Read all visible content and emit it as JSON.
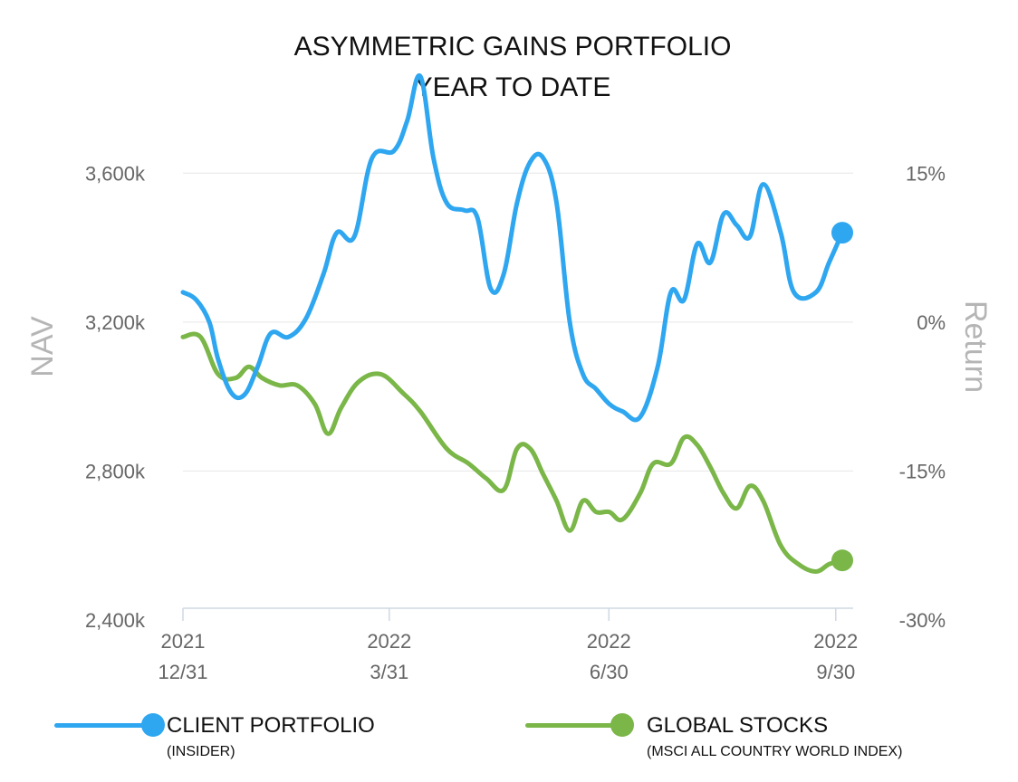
{
  "chart_data": {
    "type": "line",
    "title": [
      "ASYMMETRIC GAINS PORTFOLIO",
      "YEAR TO DATE"
    ],
    "ylabel": "NAV",
    "y2label": "Return",
    "ylim": [
      2400,
      3800
    ],
    "y_ticks": [
      {
        "value": 3600,
        "label": "3,600k"
      },
      {
        "value": 3200,
        "label": "3,200k"
      },
      {
        "value": 2800,
        "label": "2,800k"
      },
      {
        "value": 2400,
        "label": "2,400k"
      }
    ],
    "y2_ticks": [
      {
        "value": 3600,
        "label": "15%"
      },
      {
        "value": 3200,
        "label": "0%"
      },
      {
        "value": 2800,
        "label": "-15%"
      },
      {
        "value": 2400,
        "label": "-30%"
      }
    ],
    "x_ticks": [
      {
        "x": 0,
        "line1": "2021",
        "line2": "12/31"
      },
      {
        "x": 0.31,
        "line1": "2022",
        "line2": "3/31"
      },
      {
        "x": 0.64,
        "line1": "2022",
        "line2": "6/30"
      },
      {
        "x": 0.97,
        "line1": "2022",
        "line2": "9/30"
      }
    ],
    "xlim": [
      0,
      1
    ],
    "grid": true,
    "series": [
      {
        "name": "CLIENT PORTFOLIO",
        "sublabel": "(INSIDER)",
        "color": "#2ea6f0",
        "points": [
          [
            0.0,
            3280
          ],
          [
            0.015,
            3260
          ],
          [
            0.03,
            3200
          ],
          [
            0.04,
            3100
          ],
          [
            0.055,
            3010
          ],
          [
            0.07,
            3005
          ],
          [
            0.085,
            3080
          ],
          [
            0.1,
            3170
          ],
          [
            0.12,
            3160
          ],
          [
            0.14,
            3210
          ],
          [
            0.16,
            3330
          ],
          [
            0.175,
            3440
          ],
          [
            0.195,
            3430
          ],
          [
            0.215,
            3640
          ],
          [
            0.24,
            3660
          ],
          [
            0.255,
            3740
          ],
          [
            0.27,
            3860
          ],
          [
            0.285,
            3640
          ],
          [
            0.3,
            3520
          ],
          [
            0.32,
            3500
          ],
          [
            0.335,
            3480
          ],
          [
            0.35,
            3290
          ],
          [
            0.365,
            3330
          ],
          [
            0.38,
            3520
          ],
          [
            0.395,
            3630
          ],
          [
            0.41,
            3640
          ],
          [
            0.425,
            3520
          ],
          [
            0.44,
            3200
          ],
          [
            0.455,
            3060
          ],
          [
            0.47,
            3020
          ],
          [
            0.485,
            2980
          ],
          [
            0.5,
            2960
          ],
          [
            0.52,
            2945
          ],
          [
            0.54,
            3080
          ],
          [
            0.555,
            3280
          ],
          [
            0.57,
            3260
          ],
          [
            0.585,
            3410
          ],
          [
            0.6,
            3360
          ],
          [
            0.615,
            3490
          ],
          [
            0.63,
            3460
          ],
          [
            0.645,
            3430
          ],
          [
            0.66,
            3570
          ],
          [
            0.68,
            3440
          ],
          [
            0.695,
            3280
          ],
          [
            0.72,
            3280
          ],
          [
            0.735,
            3360
          ],
          [
            0.75,
            3440
          ]
        ]
      },
      {
        "name": "GLOBAL STOCKS",
        "sublabel": "(MSCI ALL COUNTRY WORLD INDEX)",
        "color": "#7ab648",
        "points": [
          [
            0.0,
            3160
          ],
          [
            0.02,
            3160
          ],
          [
            0.04,
            3060
          ],
          [
            0.06,
            3050
          ],
          [
            0.075,
            3080
          ],
          [
            0.09,
            3050
          ],
          [
            0.11,
            3030
          ],
          [
            0.13,
            3030
          ],
          [
            0.15,
            2980
          ],
          [
            0.165,
            2900
          ],
          [
            0.18,
            2970
          ],
          [
            0.2,
            3040
          ],
          [
            0.225,
            3060
          ],
          [
            0.25,
            3010
          ],
          [
            0.27,
            2960
          ],
          [
            0.3,
            2860
          ],
          [
            0.325,
            2820
          ],
          [
            0.345,
            2780
          ],
          [
            0.365,
            2750
          ],
          [
            0.38,
            2860
          ],
          [
            0.395,
            2860
          ],
          [
            0.41,
            2790
          ],
          [
            0.425,
            2720
          ],
          [
            0.44,
            2640
          ],
          [
            0.455,
            2720
          ],
          [
            0.47,
            2690
          ],
          [
            0.485,
            2690
          ],
          [
            0.5,
            2670
          ],
          [
            0.52,
            2740
          ],
          [
            0.535,
            2820
          ],
          [
            0.555,
            2820
          ],
          [
            0.57,
            2890
          ],
          [
            0.585,
            2870
          ],
          [
            0.6,
            2810
          ],
          [
            0.615,
            2740
          ],
          [
            0.63,
            2700
          ],
          [
            0.645,
            2760
          ],
          [
            0.66,
            2720
          ],
          [
            0.68,
            2600
          ],
          [
            0.7,
            2550
          ],
          [
            0.72,
            2530
          ],
          [
            0.735,
            2550
          ],
          [
            0.75,
            2560
          ]
        ]
      }
    ],
    "legend_position": "bottom"
  }
}
